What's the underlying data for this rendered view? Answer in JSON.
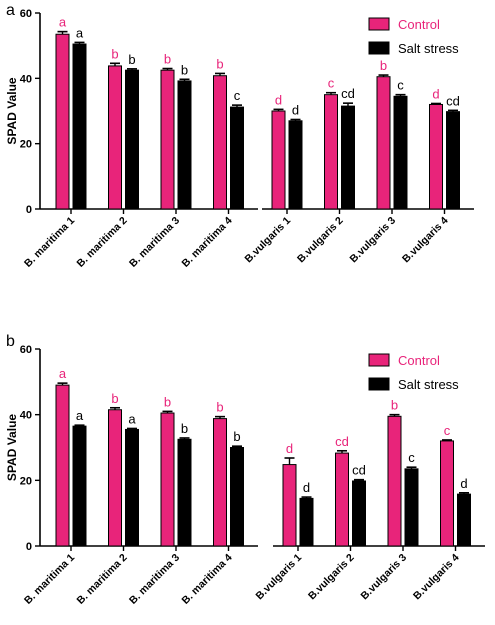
{
  "colors": {
    "control": "#e8247a",
    "salt": "#000000"
  },
  "chart_data": [
    {
      "type": "bar",
      "panel": "a",
      "ylabel": "SPAD Value",
      "ylim": [
        0,
        60
      ],
      "yticks": [
        0,
        20,
        40,
        60
      ],
      "categories": [
        "B. maritima 1",
        "B. maritima 2",
        "B. maritima 3",
        "B. maritima 4",
        "B.vulgaris 1",
        "B.vulgaris 2",
        "B.vulgaris 3",
        "B.vulgaris 4"
      ],
      "series": [
        {
          "name": "Control",
          "values": [
            53.5,
            43.8,
            42.5,
            40.8,
            30.0,
            35.0,
            40.5,
            32.0
          ],
          "errors": [
            0.8,
            0.8,
            0.5,
            0.7,
            0.5,
            0.6,
            0.5,
            0.3
          ],
          "labels": [
            "a",
            "b",
            "b",
            "b",
            "d",
            "c",
            "b",
            "d"
          ]
        },
        {
          "name": "Salt stress",
          "values": [
            50.5,
            42.5,
            39.2,
            31.2,
            27.0,
            31.5,
            34.5,
            29.8
          ],
          "errors": [
            0.5,
            0.4,
            0.5,
            0.6,
            0.4,
            0.9,
            0.5,
            0.4
          ],
          "labels": [
            "a",
            "b",
            "b",
            "c",
            "d",
            "cd",
            "c",
            "cd"
          ]
        }
      ],
      "legend_position": "top-right"
    },
    {
      "type": "bar",
      "panel": "b",
      "ylabel": "SPAD Value",
      "ylim": [
        0,
        60
      ],
      "yticks": [
        0,
        20,
        40,
        60
      ],
      "categories": [
        "B. maritima 1",
        "B. maritima 2",
        "B. maritima 3",
        "B. maritima 4",
        "B.vulgaris 1",
        "B.vulgaris 2",
        "B.vulgaris 3",
        "B.vulgaris 4"
      ],
      "series": [
        {
          "name": "Control",
          "values": [
            49.0,
            41.5,
            40.5,
            38.8,
            24.8,
            28.3,
            39.5,
            32.0
          ],
          "errors": [
            0.6,
            0.6,
            0.5,
            0.6,
            2.0,
            0.7,
            0.5,
            0.3
          ],
          "labels": [
            "a",
            "b",
            "b",
            "b",
            "d",
            "cd",
            "b",
            "c"
          ]
        },
        {
          "name": "Salt stress",
          "values": [
            36.5,
            35.5,
            32.5,
            30.0,
            14.5,
            19.8,
            23.5,
            15.8
          ],
          "errors": [
            0.3,
            0.3,
            0.4,
            0.4,
            0.4,
            0.4,
            0.5,
            0.4
          ],
          "labels": [
            "a",
            "a",
            "b",
            "b",
            "d",
            "cd",
            "c",
            "d"
          ]
        }
      ],
      "legend_position": "top-right"
    }
  ]
}
